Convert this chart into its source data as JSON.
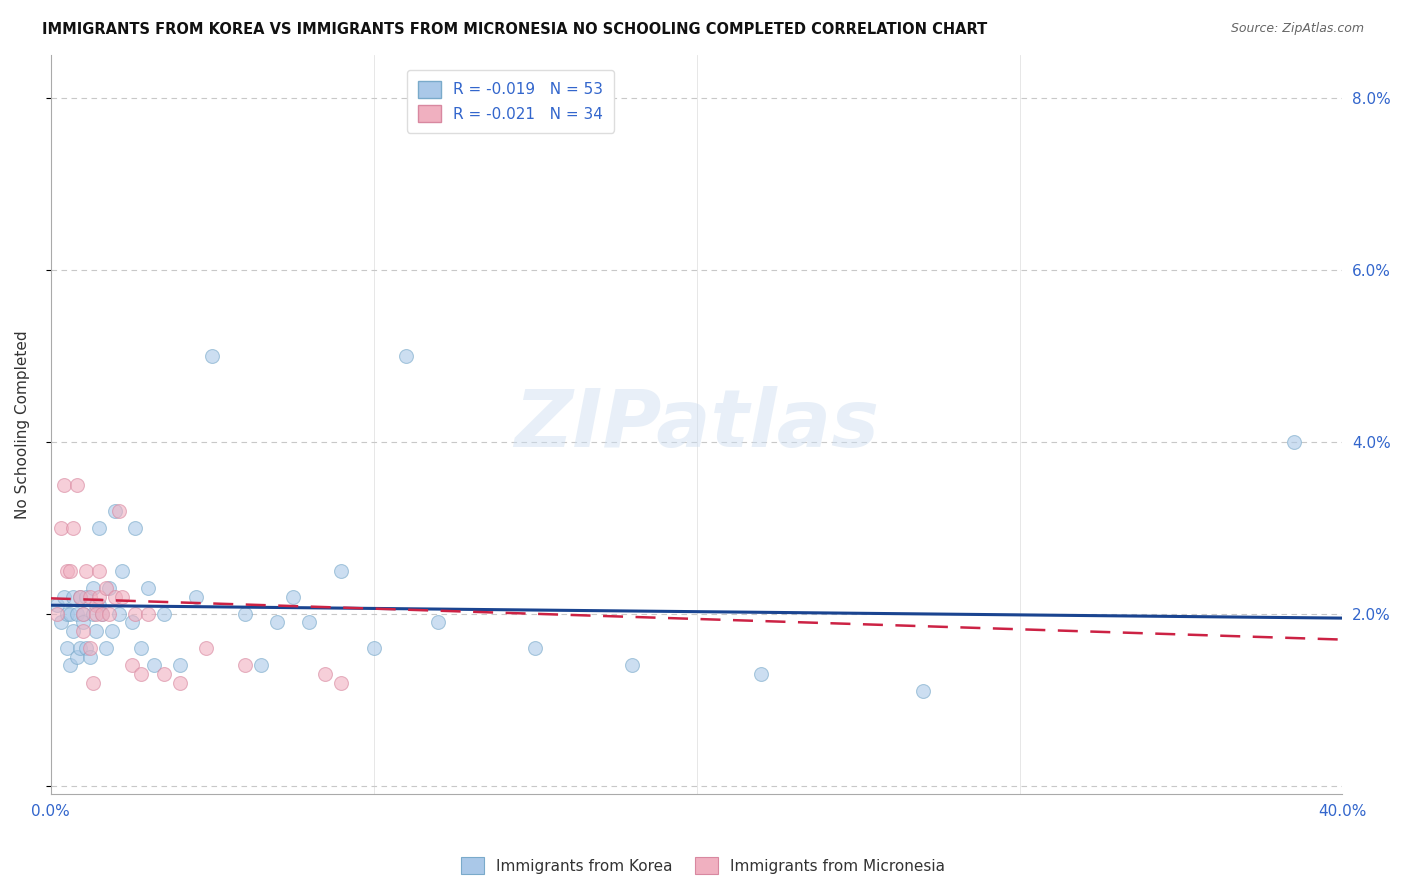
{
  "title": "IMMIGRANTS FROM KOREA VS IMMIGRANTS FROM MICRONESIA NO SCHOOLING COMPLETED CORRELATION CHART",
  "source": "Source: ZipAtlas.com",
  "ylabel": "No Schooling Completed",
  "watermark": "ZIPatlas",
  "xlim": [
    0.0,
    0.4
  ],
  "ylim": [
    -0.001,
    0.085
  ],
  "yticks": [
    0.0,
    0.02,
    0.04,
    0.06,
    0.08
  ],
  "ytick_labels": [
    "",
    "2.0%",
    "4.0%",
    "6.0%",
    "8.0%"
  ],
  "xticks": [
    0.0,
    0.1,
    0.2,
    0.3,
    0.4
  ],
  "xtick_labels": [
    "0.0%",
    "",
    "",
    "",
    "40.0%"
  ],
  "legend_korea_r": "R = -0.019",
  "legend_korea_n": "N = 53",
  "legend_micronesia_r": "R = -0.021",
  "legend_micronesia_n": "N = 34",
  "background_color": "#ffffff",
  "grid_color": "#c8c8c8",
  "korea_color": "#aac8e8",
  "korea_edge_color": "#7aaaca",
  "micronesia_color": "#f0b0c0",
  "micronesia_edge_color": "#d888a0",
  "korea_line_color": "#1a4490",
  "micronesia_line_color": "#cc2244",
  "axis_color": "#3366cc",
  "scatter_alpha": 0.6,
  "scatter_size": 100,
  "korea_x": [
    0.002,
    0.003,
    0.004,
    0.005,
    0.005,
    0.006,
    0.006,
    0.007,
    0.007,
    0.008,
    0.008,
    0.009,
    0.009,
    0.01,
    0.01,
    0.011,
    0.011,
    0.012,
    0.013,
    0.013,
    0.014,
    0.015,
    0.015,
    0.016,
    0.017,
    0.018,
    0.019,
    0.02,
    0.021,
    0.022,
    0.025,
    0.026,
    0.028,
    0.03,
    0.032,
    0.035,
    0.04,
    0.045,
    0.05,
    0.06,
    0.065,
    0.07,
    0.075,
    0.08,
    0.09,
    0.1,
    0.11,
    0.12,
    0.15,
    0.18,
    0.22,
    0.27,
    0.385
  ],
  "korea_y": [
    0.021,
    0.019,
    0.022,
    0.02,
    0.016,
    0.02,
    0.014,
    0.022,
    0.018,
    0.02,
    0.015,
    0.022,
    0.016,
    0.02,
    0.019,
    0.022,
    0.016,
    0.015,
    0.02,
    0.023,
    0.018,
    0.03,
    0.021,
    0.02,
    0.016,
    0.023,
    0.018,
    0.032,
    0.02,
    0.025,
    0.019,
    0.03,
    0.016,
    0.023,
    0.014,
    0.02,
    0.014,
    0.022,
    0.05,
    0.02,
    0.014,
    0.019,
    0.022,
    0.019,
    0.025,
    0.016,
    0.05,
    0.019,
    0.016,
    0.014,
    0.013,
    0.011,
    0.04
  ],
  "micronesia_x": [
    0.002,
    0.003,
    0.004,
    0.005,
    0.006,
    0.007,
    0.008,
    0.009,
    0.01,
    0.01,
    0.011,
    0.012,
    0.012,
    0.013,
    0.014,
    0.014,
    0.015,
    0.015,
    0.016,
    0.017,
    0.018,
    0.02,
    0.021,
    0.022,
    0.025,
    0.026,
    0.028,
    0.03,
    0.035,
    0.04,
    0.048,
    0.06,
    0.085,
    0.09
  ],
  "micronesia_y": [
    0.02,
    0.03,
    0.035,
    0.025,
    0.025,
    0.03,
    0.035,
    0.022,
    0.018,
    0.02,
    0.025,
    0.022,
    0.016,
    0.012,
    0.021,
    0.02,
    0.025,
    0.022,
    0.02,
    0.023,
    0.02,
    0.022,
    0.032,
    0.022,
    0.014,
    0.02,
    0.013,
    0.02,
    0.013,
    0.012,
    0.016,
    0.014,
    0.013,
    0.012
  ],
  "korea_trend_x": [
    0.0,
    0.4
  ],
  "korea_trend_y": [
    0.021,
    0.0195
  ],
  "micronesia_trend_x": [
    0.0,
    0.4
  ],
  "micronesia_trend_y": [
    0.0218,
    0.017
  ]
}
